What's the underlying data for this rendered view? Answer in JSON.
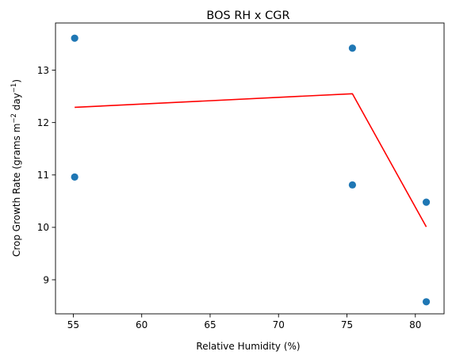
{
  "chart_data": {
    "type": "scatter",
    "title": "BOS RH x CGR",
    "xlabel": "Relative Humidity (%)",
    "ylabel_parts": {
      "base": "Crop Growth Rate (grams m",
      "sup1": "−2",
      "mid": " day",
      "sup2": "−1",
      "end": ")"
    },
    "xlim": [
      53.7,
      82.1
    ],
    "ylim": [
      8.35,
      13.9
    ],
    "xticks": [
      55,
      60,
      65,
      70,
      75,
      80
    ],
    "yticks": [
      9,
      10,
      11,
      12,
      13
    ],
    "grid": false,
    "points_color": "#1f77b4",
    "line_color": "#ff0000",
    "series": [
      {
        "type": "scatter",
        "x": [
          55.1,
          55.1,
          75.4,
          75.4,
          80.8,
          80.8
        ],
        "y": [
          13.61,
          10.96,
          13.42,
          10.81,
          10.48,
          8.58
        ]
      },
      {
        "type": "line",
        "x": [
          55.1,
          75.4,
          80.8
        ],
        "y": [
          12.29,
          12.55,
          10.01
        ]
      }
    ]
  }
}
